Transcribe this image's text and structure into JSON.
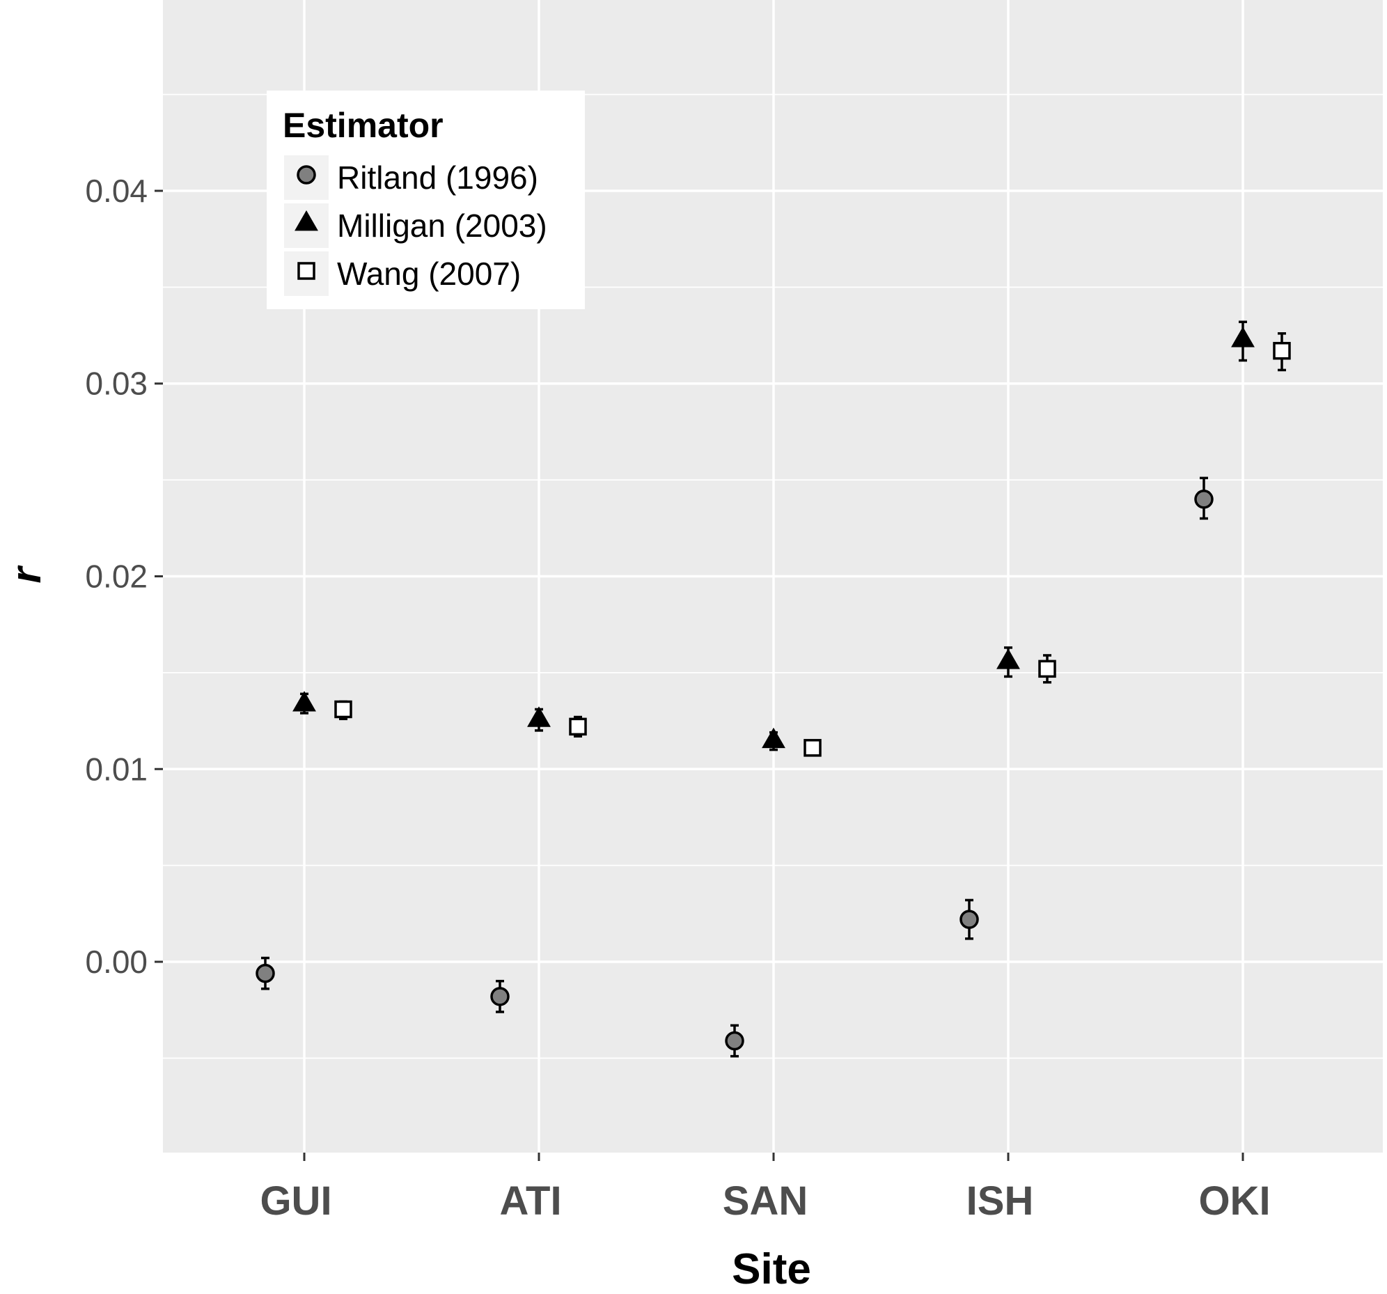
{
  "chart_data": {
    "type": "scatter",
    "xlabel": "Site",
    "ylabel": "r",
    "categories": [
      "GUI",
      "ATI",
      "SAN",
      "ISH",
      "OKI"
    ],
    "ylim": [
      -0.0099,
      0.0499
    ],
    "yticks": [
      0.0,
      0.01,
      0.02,
      0.03,
      0.04
    ],
    "ytick_labels": [
      "0.00",
      "0.01",
      "0.02",
      "0.03",
      "0.04"
    ],
    "grid": true,
    "legend": {
      "title": "Estimator",
      "position": "top-left"
    },
    "series": [
      {
        "name": "Ritland (1996)",
        "marker": "circle",
        "color": "#808080",
        "values": [
          -0.0006,
          -0.0018,
          -0.0041,
          0.0022,
          0.024
        ],
        "err_low": [
          -0.0014,
          -0.0026,
          -0.0049,
          0.0012,
          0.023
        ],
        "err_high": [
          0.0002,
          -0.001,
          -0.0033,
          0.0032,
          0.0251
        ]
      },
      {
        "name": "Milligan (2003)",
        "marker": "triangle",
        "color": "#000000",
        "values": [
          0.0134,
          0.0126,
          0.0115,
          0.0156,
          0.0323
        ],
        "err_low": [
          0.0129,
          0.012,
          0.011,
          0.0148,
          0.0312
        ],
        "err_high": [
          0.0139,
          0.0131,
          0.0119,
          0.0163,
          0.0332
        ]
      },
      {
        "name": "Wang (2007)",
        "marker": "square",
        "color": "#ffffff",
        "values": [
          0.0131,
          0.0122,
          0.0111,
          0.0152,
          0.0317
        ],
        "err_low": [
          0.0126,
          0.0117,
          0.0108,
          0.0145,
          0.0307
        ],
        "err_high": [
          0.0135,
          0.0127,
          0.0114,
          0.0159,
          0.0326
        ]
      }
    ]
  }
}
